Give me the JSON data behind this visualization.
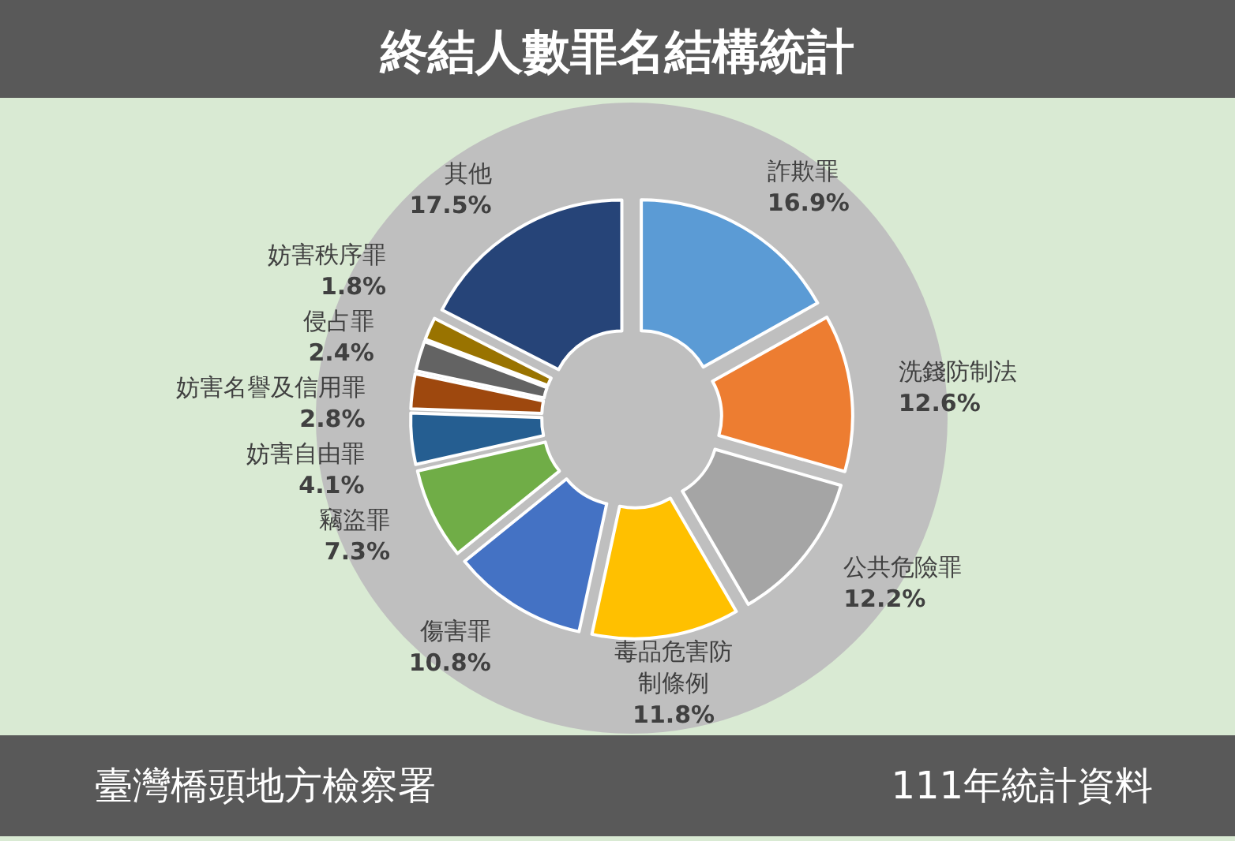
{
  "chart_data": {
    "type": "donut",
    "title": "終結人數罪名結構統計",
    "categories": [
      "詐欺罪",
      "洗錢防制法",
      "公共危險罪",
      "毒品危害防制條例",
      "傷害罪",
      "竊盜罪",
      "妨害自由罪",
      "妨害名譽及信用罪",
      "侵占罪",
      "妨害秩序罪",
      "其他"
    ],
    "values": [
      16.9,
      12.6,
      12.2,
      11.8,
      10.8,
      7.3,
      4.1,
      2.8,
      2.4,
      1.8,
      17.5
    ],
    "colors": [
      "#5b9bd5",
      "#ed7d31",
      "#a5a5a5",
      "#ffc000",
      "#4472c4",
      "#70ad47",
      "#255e91",
      "#9e480e",
      "#636363",
      "#997300",
      "#264478"
    ],
    "data_labels": true,
    "value_labels": [
      "16.9%",
      "12.6%",
      "12.2%",
      "11.8%",
      "10.8%",
      "7.3%",
      "4.1%",
      "2.8%",
      "2.4%",
      "1.8%",
      "17.5%"
    ],
    "annotations": [
      "臺灣橋頭地方檢察署",
      "111年統計資料"
    ]
  }
}
